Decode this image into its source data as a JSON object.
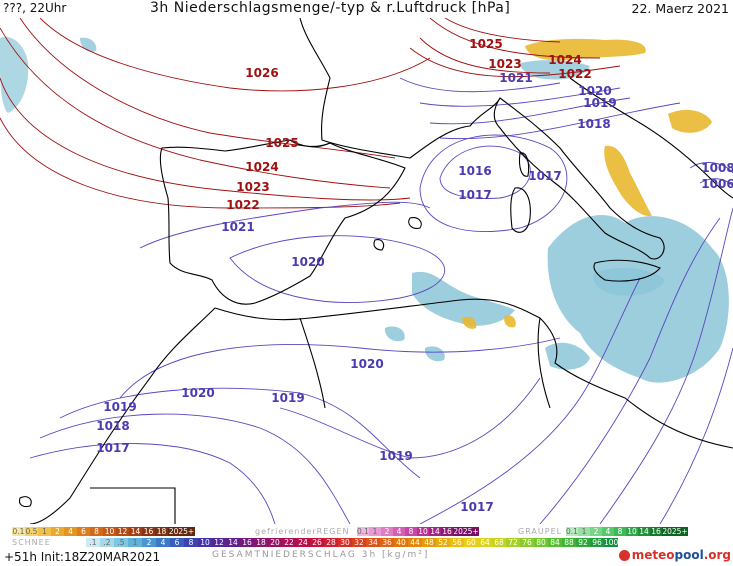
{
  "header": {
    "left": "???, 22Uhr",
    "title": "3h Niederschlagsmenge/-typ & r.Luftdruck [hPa]",
    "date": "22. Maerz 2021"
  },
  "isobar_labels": [
    {
      "text": "1026",
      "kind": "high"
    },
    {
      "text": "1025",
      "kind": "high"
    },
    {
      "text": "1024",
      "kind": "high"
    },
    {
      "text": "1023",
      "kind": "high"
    },
    {
      "text": "1022",
      "kind": "high"
    },
    {
      "text": "1021",
      "kind": "low"
    },
    {
      "text": "1020",
      "kind": "low"
    },
    {
      "text": "1025",
      "kind": "high"
    },
    {
      "text": "1023",
      "kind": "high"
    },
    {
      "text": "1024",
      "kind": "high"
    },
    {
      "text": "1021",
      "kind": "low"
    },
    {
      "text": "1022",
      "kind": "high"
    },
    {
      "text": "1020",
      "kind": "low"
    },
    {
      "text": "1019",
      "kind": "low"
    },
    {
      "text": "1018",
      "kind": "low"
    },
    {
      "text": "1016",
      "kind": "low"
    },
    {
      "text": "1017",
      "kind": "low"
    },
    {
      "text": "1017",
      "kind": "low"
    },
    {
      "text": "1008",
      "kind": "low"
    },
    {
      "text": "1006",
      "kind": "low"
    },
    {
      "text": "1020",
      "kind": "low"
    },
    {
      "text": "1020",
      "kind": "low"
    },
    {
      "text": "1019",
      "kind": "low"
    },
    {
      "text": "1019",
      "kind": "low"
    },
    {
      "text": "1018",
      "kind": "low"
    },
    {
      "text": "1017",
      "kind": "low"
    },
    {
      "text": "1019",
      "kind": "low"
    },
    {
      "text": "1017",
      "kind": "low"
    }
  ],
  "legend": {
    "rain_values": [
      "0.1",
      "0.5",
      "1",
      "2",
      "4",
      "6",
      "8",
      "10",
      "12",
      "14",
      "16",
      "18",
      "2025+"
    ],
    "freezing_rain_label": "gefrierenderREGEN",
    "freezing_rain_values": [
      "0.1",
      "1",
      "2",
      "4",
      "8",
      "10",
      "14",
      "16",
      "2025+"
    ],
    "graupel_label": "GRAUPEL",
    "graupel_values": [
      "0.1",
      "1",
      "2",
      "4",
      "8",
      "10",
      "14",
      "16",
      "2025+"
    ],
    "snow_label": "SCHNEE",
    "snow_values": [
      ".1",
      ".2",
      ".5",
      "1",
      "2",
      "4",
      "6",
      "8",
      "10",
      "12",
      "14",
      "16",
      "18",
      "20",
      "22",
      "24",
      "26",
      "28",
      "30",
      "32",
      "34",
      "36",
      "40",
      "44",
      "48",
      "52",
      "56",
      "60",
      "64",
      "68",
      "72",
      "76",
      "80",
      "84",
      "88",
      "92",
      "96",
      "100"
    ],
    "total_label": "GESAMTNIEDERSCHLAG 3h [kg/m²]"
  },
  "run_info": "+51h Init:18Z20MAR2021",
  "brand": {
    "part1": "meteo",
    "part2": "pool",
    "part3": ".org"
  },
  "colors": {
    "high_isobar": "#a01010",
    "low_isobar": "#4a3bb0",
    "coast": "#000000",
    "precip_blue": "#8cc6d8",
    "precip_yellow": "#e8b830"
  }
}
